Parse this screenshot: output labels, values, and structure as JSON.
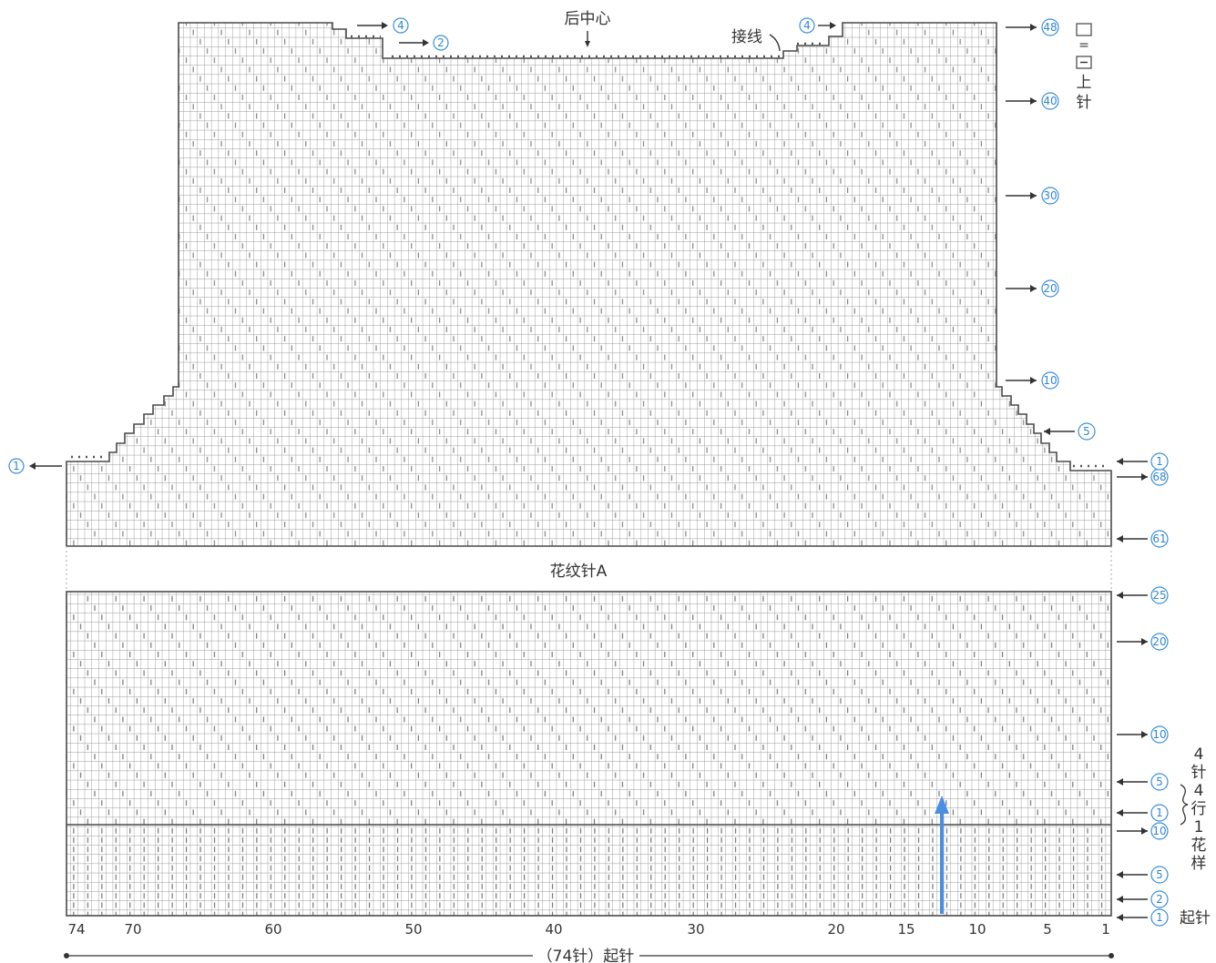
{
  "labels": {
    "back_center": "后中心",
    "join_yarn": "接线",
    "pattern_name": "花纹针A",
    "cast_on_total": "（74针）起针",
    "cast_on": "起针",
    "legend_box": "□",
    "legend_eq": "=",
    "legend_purl": "−",
    "legend_text_1": "上",
    "legend_text_2": "针",
    "repeat_1": "4",
    "repeat_2": "针",
    "repeat_3": "4",
    "repeat_4": "行",
    "repeat_5": "1",
    "repeat_6": "花",
    "repeat_7": "样"
  },
  "stitch_ticks": [
    "74",
    "70",
    "60",
    "50",
    "40",
    "30",
    "20",
    "15",
    "10",
    "5",
    "1"
  ],
  "row_markers_lower": [
    {
      "text": "1",
      "dir": "left",
      "note": "cast-on row"
    },
    {
      "text": "2",
      "dir": "left"
    },
    {
      "text": "5",
      "dir": "left"
    },
    {
      "text": "10",
      "dir": "right"
    },
    {
      "text": "1",
      "dir": "left"
    },
    {
      "text": "5",
      "dir": "left"
    },
    {
      "text": "10",
      "dir": "right"
    },
    {
      "text": "20",
      "dir": "right"
    },
    {
      "text": "25",
      "dir": "left"
    }
  ],
  "row_markers_upper": [
    {
      "text": "61",
      "dir": "left"
    },
    {
      "text": "68",
      "dir": "right"
    },
    {
      "text": "1",
      "dir": "left"
    },
    {
      "text": "5",
      "dir": "left"
    },
    {
      "text": "10",
      "dir": "right"
    },
    {
      "text": "20",
      "dir": "right"
    },
    {
      "text": "30",
      "dir": "right"
    },
    {
      "text": "40",
      "dir": "right"
    },
    {
      "text": "48",
      "dir": "right"
    }
  ],
  "left_side_marker": "1",
  "shoulder_markers": {
    "left_top": "4",
    "left_mid": "2",
    "right_top": "4"
  },
  "colors": {
    "grid": "#6b6b6b",
    "outline": "#4a4a4a",
    "accent": "#3a8fd8",
    "purl_mark": "#777777"
  }
}
